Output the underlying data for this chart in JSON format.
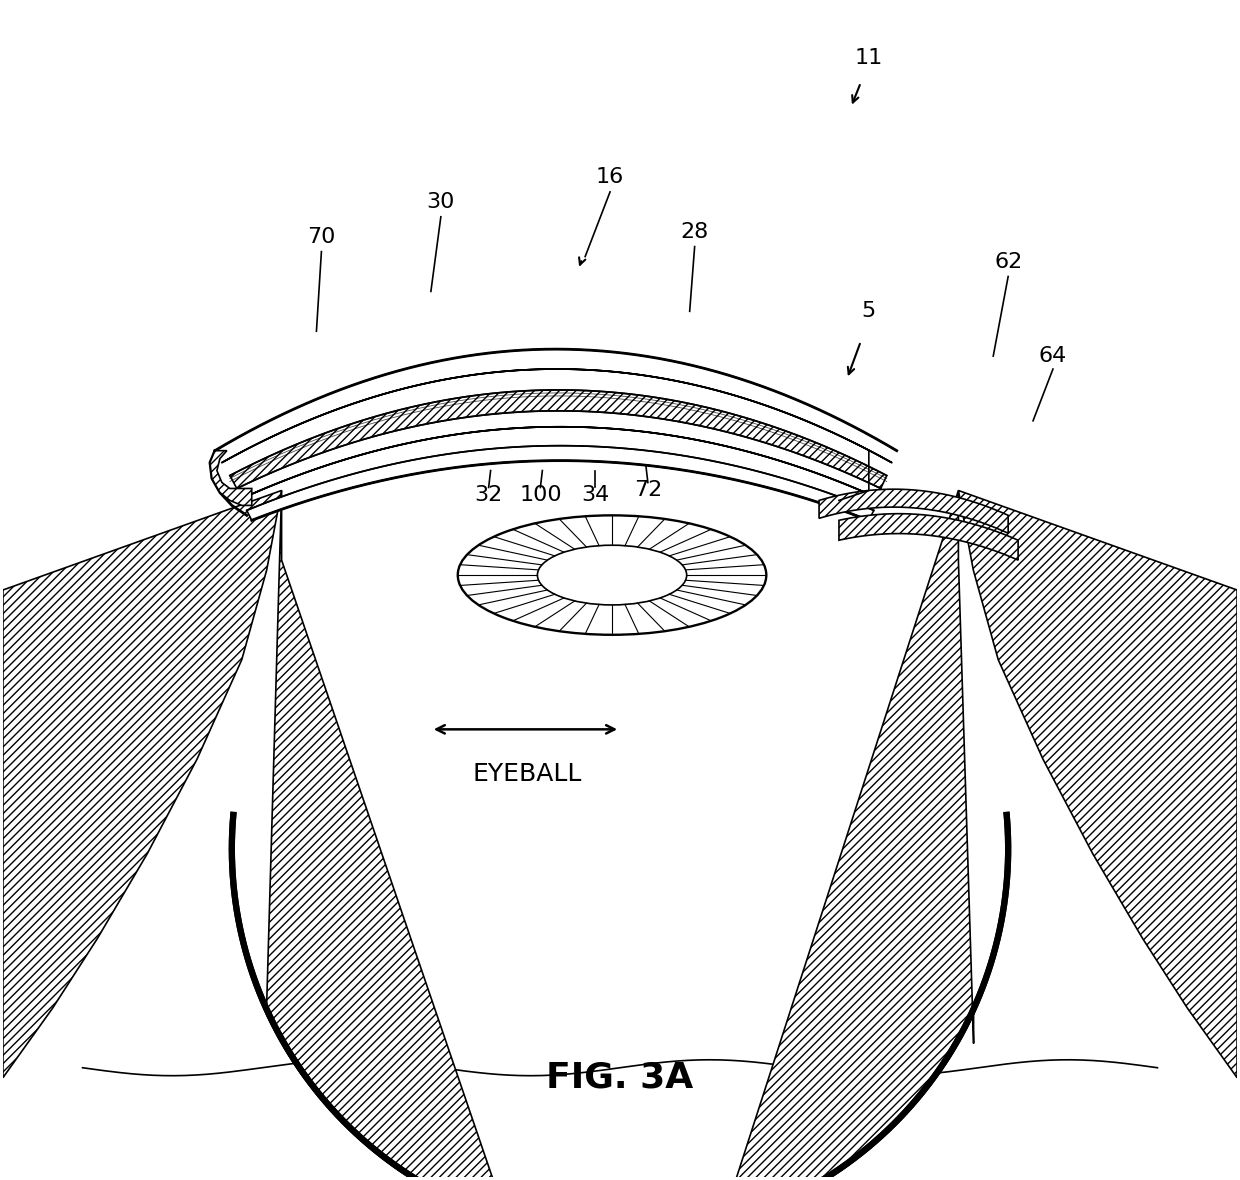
{
  "title": "FIG. 3A",
  "background_color": "#ffffff",
  "line_color": "#000000",
  "fig_width": 12.4,
  "fig_height": 11.8
}
